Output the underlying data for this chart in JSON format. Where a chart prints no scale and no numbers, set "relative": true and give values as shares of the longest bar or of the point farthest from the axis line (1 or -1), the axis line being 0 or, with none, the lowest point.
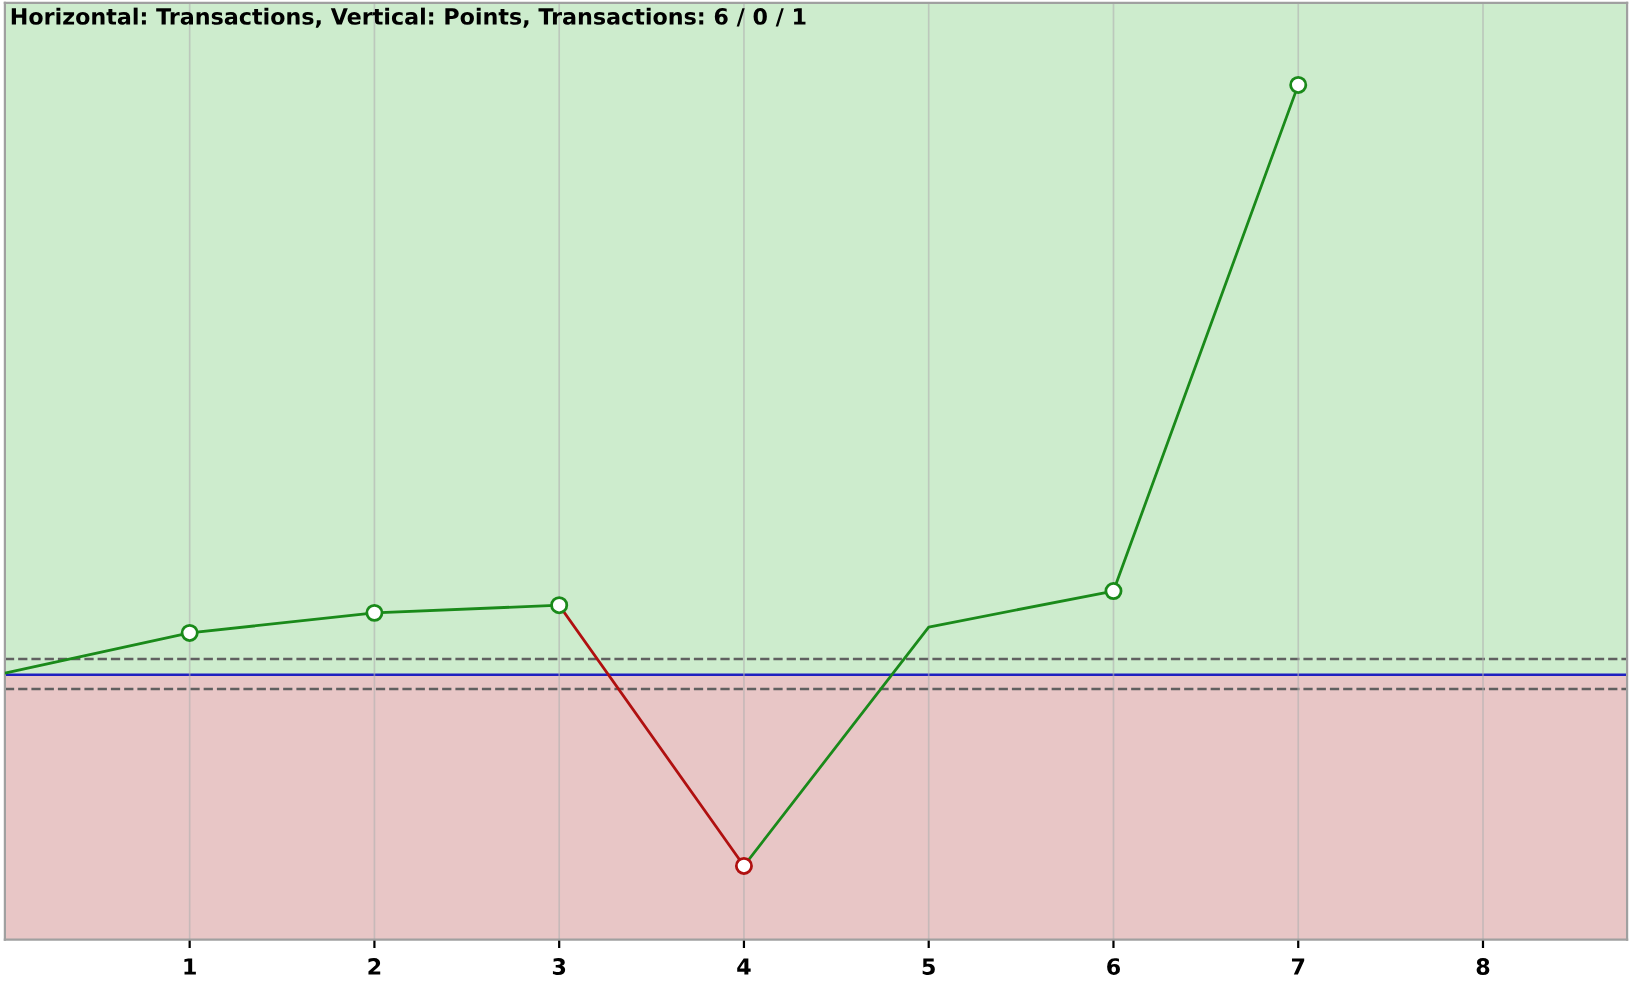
{
  "chart_data": {
    "type": "line",
    "title": "Horizontal: Transactions, Vertical: Points, Transactions: 6 / 0 / 1",
    "relative": true,
    "x": [
      0,
      1,
      2,
      3,
      4,
      5,
      6,
      7
    ],
    "series": [
      {
        "color": "#1a8a1a",
        "marker": "none",
        "values": [
          0.003,
          0.071,
          0.105,
          0.118,
          null,
          null,
          null,
          null
        ]
      },
      {
        "color": "#b01010",
        "marker": "none",
        "values": [
          null,
          null,
          null,
          0.118,
          -0.324,
          null,
          null,
          null
        ]
      },
      {
        "color": "#1a8a1a",
        "marker": "none",
        "values": [
          null,
          null,
          null,
          null,
          -0.324,
          0.081,
          0.142,
          1.0
        ]
      },
      {
        "type": "scatter",
        "color": "#1a8a1a",
        "marker": "circle",
        "values": [
          null,
          0.071,
          0.105,
          0.118,
          null,
          null,
          0.142,
          1.0
        ]
      },
      {
        "type": "scatter",
        "color": "#b01010",
        "marker": "circle",
        "values": [
          null,
          null,
          null,
          null,
          -0.324,
          null,
          null,
          null
        ]
      }
    ],
    "xlim": [
      0,
      8.78
    ],
    "xticks": [
      1,
      2,
      3,
      4,
      5,
      6,
      7,
      8
    ],
    "tick_labels": "x",
    "grid": "x",
    "ref_lines": [
      {
        "axis": "y",
        "value": 0,
        "color": "#2020c0",
        "line_style": "solid"
      },
      {
        "axis": "y",
        "value": 0.027,
        "color": "#606060",
        "line_style": "dashed"
      },
      {
        "axis": "y",
        "value": -0.024,
        "color": "#606060",
        "line_style": "dashed"
      }
    ],
    "bands": [
      {
        "axis": "y",
        "from": 0,
        "to": 1.139,
        "color": "#cdeccd"
      },
      {
        "axis": "y",
        "from": -0.449,
        "to": 0,
        "color": "#e8c6c6"
      }
    ]
  }
}
